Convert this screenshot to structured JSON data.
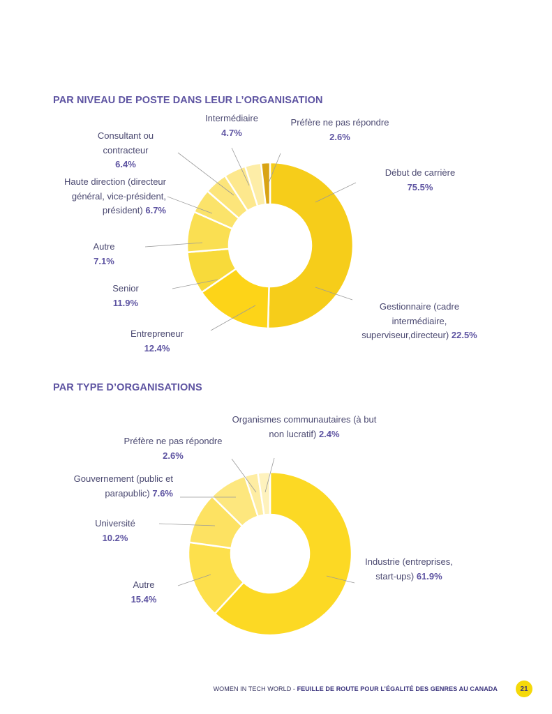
{
  "chart_data": [
    {
      "type": "pie",
      "title": "PAR NIVEAU DE POSTE DANS LEUR L’ORGANISATION",
      "slices": [
        {
          "label_lines": [
            "Début de carrière"
          ],
          "pct": "75.5%",
          "value": 75.5,
          "color": "#f6cd1a"
        },
        {
          "label_lines": [
            "Gestionnaire (cadre",
            "intermédiaire,",
            "superviseur,directeur)"
          ],
          "pct": "22.5%",
          "value": 22.5,
          "color": "#fdd418"
        },
        {
          "label_lines": [
            "Entrepreneur"
          ],
          "pct": "12.4%",
          "value": 12.4,
          "color": "#f8da3a"
        },
        {
          "label_lines": [
            "Senior"
          ],
          "pct": "11.9%",
          "value": 11.9,
          "color": "#fadf52"
        },
        {
          "label_lines": [
            "Autre"
          ],
          "pct": "7.1%",
          "value": 7.1,
          "color": "#fbe36a"
        },
        {
          "label_lines": [
            "Haute direction (directeur",
            "général, vice-président,",
            "président)"
          ],
          "pct": "6.7%",
          "value": 6.7,
          "color": "#fce57a"
        },
        {
          "label_lines": [
            "Consultant ou",
            "contracteur"
          ],
          "pct": "6.4%",
          "value": 6.4,
          "color": "#fde88d"
        },
        {
          "label_lines": [
            "Intermédiaire"
          ],
          "pct": "4.7%",
          "value": 4.7,
          "color": "#fdeda7"
        },
        {
          "label_lines": [
            "Préfère ne pas répondre"
          ],
          "pct": "2.6%",
          "value": 2.6,
          "color": "#d9a414"
        }
      ]
    },
    {
      "type": "pie",
      "title": "PAR TYPE D’ORGANISATIONS",
      "slices": [
        {
          "label_lines": [
            "Industrie (entreprises,",
            "start-ups)"
          ],
          "pct": "61.9%",
          "value": 61.9,
          "color": "#fcd924"
        },
        {
          "label_lines": [
            "Autre"
          ],
          "pct": "15.4%",
          "value": 15.4,
          "color": "#fde04c"
        },
        {
          "label_lines": [
            "Université"
          ],
          "pct": "10.2%",
          "value": 10.2,
          "color": "#fde262"
        },
        {
          "label_lines": [
            "Gouvernement (public et",
            "parapublic)"
          ],
          "pct": "7.6%",
          "value": 7.6,
          "color": "#fde77e"
        },
        {
          "label_lines": [
            "Préfère ne pas répondre"
          ],
          "pct": "2.6%",
          "value": 2.6,
          "color": "#feeda2"
        },
        {
          "label_lines": [
            "Organismes communautaires (à but",
            "non lucratif)"
          ],
          "pct": "2.4%",
          "value": 2.4,
          "color": "#fef2bd"
        }
      ]
    }
  ],
  "footer": {
    "text_regular": "WOMEN IN TECH WORLD - ",
    "text_bold": "FEUILLE DE ROUTE POUR L’ÉGALITÉ DES GENRES AU CANADA",
    "page_number": "21"
  }
}
